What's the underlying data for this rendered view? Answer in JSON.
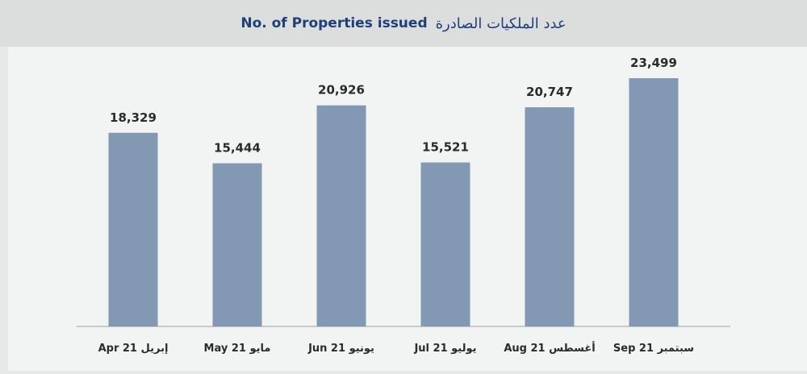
{
  "chart_data": {
    "type": "bar",
    "title": "No. of Properties issued",
    "title_ar": "عدد الملكيات الصادرة",
    "categories": [
      "Apr 21 إبريل",
      "May 21 مايو",
      "Jun 21 يونيو",
      "Jul 21 يوليو",
      "Aug 21 أغسطس",
      "Sep 21 سبتمبر"
    ],
    "values": [
      18329,
      15444,
      20926,
      15521,
      20747,
      23499
    ],
    "value_labels": [
      "18,329",
      "15,444",
      "20,926",
      "15,521",
      "20,747",
      "23,499"
    ],
    "ylim": [
      0,
      25000
    ],
    "grid": false,
    "colors": {
      "bar": "#8399b3",
      "title": "#1f3f78",
      "header_bg": "#dcdede",
      "plot_bg": "#f2f3f3"
    }
  }
}
